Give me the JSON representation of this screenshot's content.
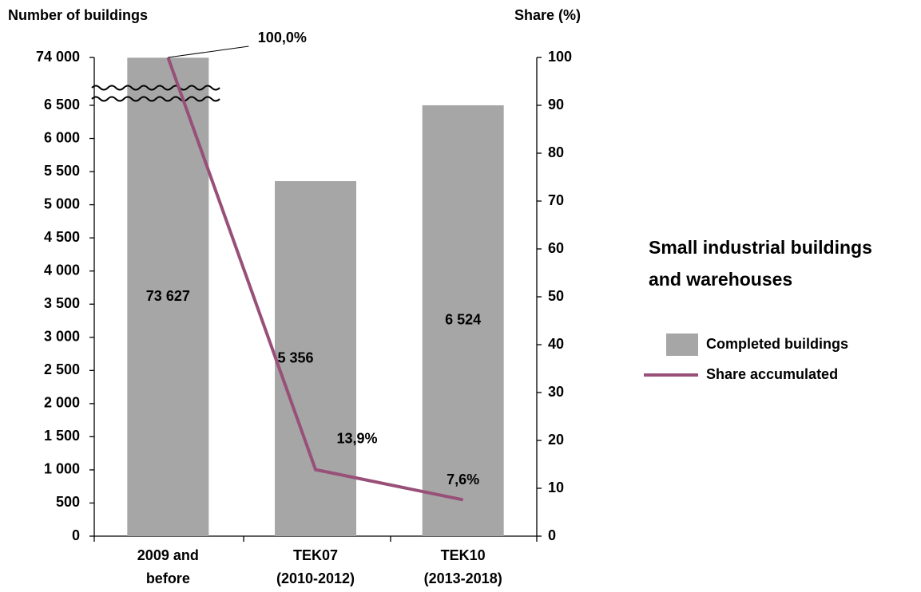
{
  "chart_data": {
    "type": "bar",
    "title": [
      "Small industrial buildings",
      "and warehouses"
    ],
    "ylabel": "Number of buildings",
    "y2label": "Share (%)",
    "categories": [
      [
        "2009 and",
        "before"
      ],
      [
        "TEK07",
        "(2010-2012)"
      ],
      [
        "TEK10",
        "(2013-2018)"
      ]
    ],
    "series": [
      {
        "name": "Completed buildings",
        "type": "bar",
        "color": "#a6a6a6",
        "values": [
          73627,
          5356,
          6524
        ],
        "value_labels": [
          "73 627",
          "5 356",
          "6 524"
        ]
      },
      {
        "name": "Share accumulated",
        "type": "line",
        "axis": "y2",
        "color": "#985079",
        "values": [
          100,
          13.9,
          7.6
        ],
        "value_labels": [
          "100,0%",
          "13,9%",
          "7,6%"
        ]
      }
    ],
    "ylim": [
      0,
      74000
    ],
    "yticks": [
      0,
      500,
      {
        "value": 1000,
        "label": "1 000"
      },
      {
        "value": 1500,
        "label": "1 500"
      },
      {
        "value": 2000,
        "label": "2 000"
      },
      {
        "value": 2500,
        "label": "2 500"
      },
      {
        "value": 3000,
        "label": "3 000"
      },
      {
        "value": 3500,
        "label": "3 500"
      },
      {
        "value": 4000,
        "label": "4 000"
      },
      {
        "value": 4500,
        "label": "4 500"
      },
      {
        "value": 5000,
        "label": "5 000"
      },
      {
        "value": 5500,
        "label": "5 500"
      },
      {
        "value": 6000,
        "label": "6 000"
      },
      {
        "value": 6500,
        "label": "6 500"
      },
      {
        "value": 74000,
        "label": "74 000"
      }
    ],
    "axis_break": true,
    "y2lim": [
      0,
      100
    ],
    "y2ticks": [
      0,
      10,
      20,
      30,
      40,
      50,
      60,
      70,
      80,
      90,
      100
    ],
    "grid": false
  }
}
